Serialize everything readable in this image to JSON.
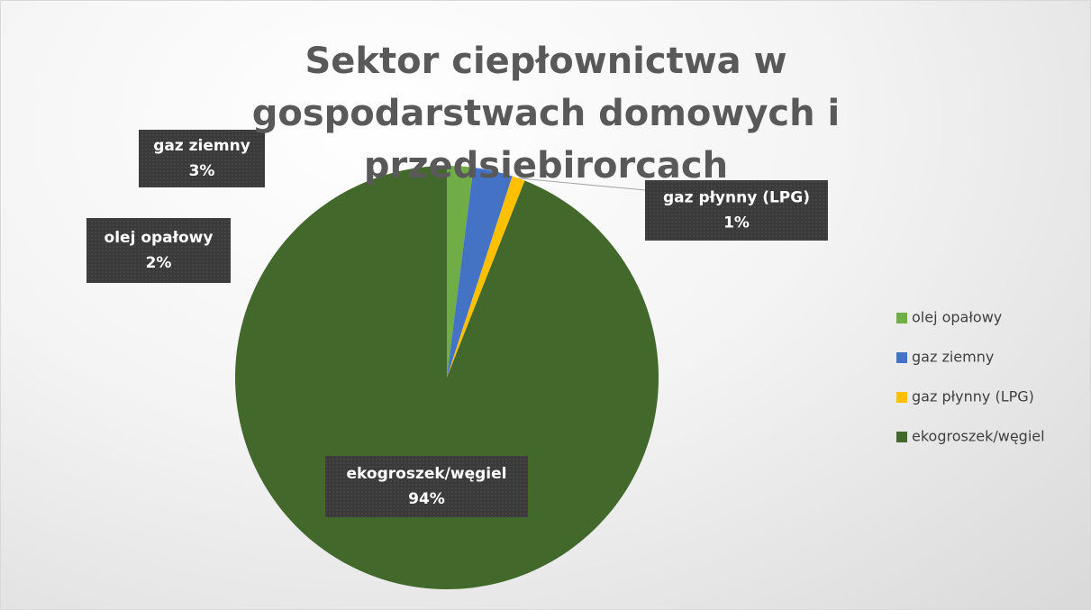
{
  "chart_data": {
    "type": "pie",
    "title": "Sektor ciepłownictwa w gospodarstwach domowych i przedsiebirorcach",
    "categories": [
      "olej opałowy",
      "gaz ziemny",
      "gaz płynny (LPG)",
      "ekogroszek/węgiel"
    ],
    "values": [
      2,
      3,
      1,
      94
    ],
    "value_labels": [
      "2%",
      "3%",
      "1%",
      "94%"
    ],
    "colors": [
      "#70ad47",
      "#4472c4",
      "#ffc000",
      "#43682b"
    ],
    "legend": "right"
  }
}
